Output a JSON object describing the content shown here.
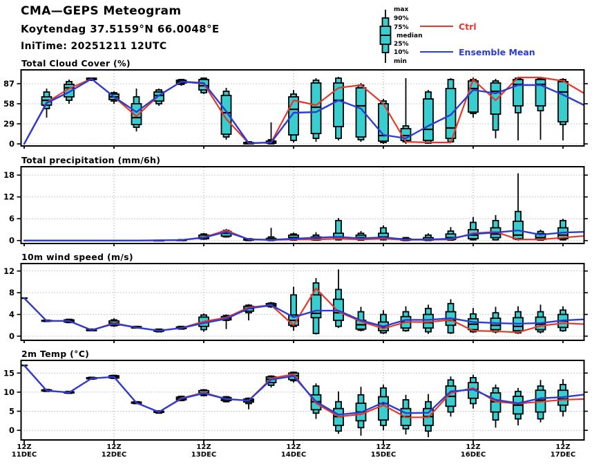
{
  "header": {
    "title": "CMA—GEPS Meteogram",
    "location": "Koytendag 37.5159°N 66.0048°E",
    "initime": "IniTime: 20251211 12UTC"
  },
  "legend": {
    "box_labels": [
      "max",
      "90%",
      "75%",
      "median",
      "25%",
      "10%",
      "min"
    ],
    "ctrl_label": "Ctrl",
    "ensemble_mean_label": "Ensemble Mean"
  },
  "colors": {
    "ctrl": "#e8362a",
    "ensemble_mean": "#2c3bd1",
    "box_fill": "#38cdce",
    "box_stroke": "#000000",
    "grid": "#999999"
  },
  "time_axis": {
    "step_hours": 6,
    "ticks": [
      {
        "time": "12Z",
        "date": "11DEC"
      },
      {
        "time": "12Z",
        "date": "12DEC"
      },
      {
        "time": "12Z",
        "date": "13DEC"
      },
      {
        "time": "12Z",
        "date": "14DEC"
      },
      {
        "time": "12Z",
        "date": "15DEC"
      },
      {
        "time": "12Z",
        "date": "16DEC"
      },
      {
        "time": "12Z",
        "date": "17DEC"
      }
    ]
  },
  "chart_data": [
    {
      "type": "box-line",
      "title": "Total Cloud Cover (%)",
      "yticks": [
        0,
        29,
        58,
        87
      ],
      "ylim": [
        -4,
        108
      ],
      "box_stats_order": [
        "min",
        "p10",
        "p25",
        "median",
        "p75",
        "p90",
        "max"
      ],
      "boxes": [
        null,
        [
          38,
          51,
          56,
          63,
          68,
          75,
          80
        ],
        [
          58,
          63,
          68,
          81,
          86,
          90,
          93
        ],
        [
          91,
          92,
          93,
          94,
          95,
          95,
          96
        ],
        [
          58,
          62,
          64,
          68,
          72,
          74,
          76
        ],
        [
          18,
          24,
          28,
          38,
          58,
          68,
          80
        ],
        [
          55,
          58,
          62,
          70,
          75,
          78,
          80
        ],
        [
          84,
          86,
          88,
          90,
          92,
          93,
          94
        ],
        [
          72,
          74,
          78,
          84,
          93,
          95,
          96
        ],
        [
          6,
          10,
          14,
          45,
          70,
          76,
          81
        ],
        [
          0,
          0,
          0,
          1,
          2,
          3,
          4
        ],
        [
          0,
          0,
          1,
          2,
          4,
          6,
          31
        ],
        [
          2,
          5,
          13,
          50,
          68,
          72,
          78
        ],
        [
          3,
          8,
          15,
          53,
          88,
          92,
          95
        ],
        [
          5,
          8,
          25,
          63,
          88,
          95,
          97
        ],
        [
          3,
          6,
          10,
          55,
          81,
          85,
          88
        ],
        [
          0,
          2,
          4,
          12,
          58,
          62,
          65
        ],
        [
          0,
          3,
          5,
          12,
          22,
          26,
          95
        ],
        [
          0,
          1,
          5,
          21,
          65,
          75,
          78
        ],
        [
          1,
          3,
          8,
          23,
          80,
          93,
          95
        ],
        [
          38,
          44,
          46,
          80,
          91,
          93,
          96
        ],
        [
          8,
          20,
          43,
          76,
          88,
          91,
          94
        ],
        [
          5,
          45,
          55,
          86,
          93,
          95,
          97
        ],
        [
          6,
          48,
          55,
          86,
          93,
          95,
          96
        ],
        [
          5,
          28,
          32,
          75,
          90,
          93,
          95
        ]
      ],
      "series": [
        {
          "name": "Ctrl",
          "values": [
            0,
            60,
            80,
            94,
            68,
            40,
            70,
            90,
            87,
            36,
            1,
            2,
            63,
            56,
            81,
            85,
            58,
            3,
            2,
            2,
            93,
            63,
            96,
            96,
            91,
            72
          ]
        },
        {
          "name": "Ensemble Mean",
          "values": [
            0,
            59,
            75,
            94,
            68,
            46,
            70,
            90,
            88,
            47,
            1,
            2,
            45,
            46,
            63,
            51,
            13,
            8,
            26,
            42,
            78,
            73,
            85,
            85,
            71,
            55
          ]
        }
      ]
    },
    {
      "type": "box-line",
      "title": "Total precipitation (mm/6h)",
      "yticks": [
        0,
        6,
        12,
        18
      ],
      "ylim": [
        -1,
        20.5
      ],
      "box_stats_order": [
        "min",
        "p10",
        "p25",
        "median",
        "p75",
        "p90",
        "max"
      ],
      "boxes": [
        null,
        null,
        null,
        null,
        null,
        null,
        [
          0,
          0,
          0,
          0,
          0.05,
          0.1,
          0.15
        ],
        [
          0,
          0,
          0,
          0.05,
          0.15,
          0.25,
          0.4
        ],
        [
          0.2,
          0.4,
          0.5,
          0.9,
          1.5,
          1.8,
          2.1
        ],
        [
          0.8,
          1.0,
          1.2,
          2.0,
          2.5,
          2.8,
          3.2
        ],
        [
          0,
          0,
          0.1,
          0.2,
          0.4,
          0.5,
          0.6
        ],
        [
          0,
          0,
          0.1,
          0.3,
          0.6,
          1.0,
          3.5
        ],
        [
          0,
          0.1,
          0.3,
          0.8,
          1.5,
          1.8,
          2.2
        ],
        [
          0,
          0.1,
          0.2,
          0.5,
          1.0,
          1.5,
          2.3
        ],
        [
          0,
          0.2,
          0.5,
          1.0,
          2.0,
          5.5,
          6.2
        ],
        [
          0,
          0.1,
          0.3,
          0.8,
          1.5,
          2.0,
          2.6
        ],
        [
          0,
          0.2,
          0.5,
          1.0,
          2.0,
          3.5,
          4.2
        ],
        [
          0,
          0,
          0.1,
          0.2,
          0.5,
          0.8,
          1.0
        ],
        [
          0,
          0,
          0.1,
          0.3,
          0.8,
          1.5,
          2.0
        ],
        [
          0,
          0.1,
          0.3,
          0.8,
          1.8,
          2.6,
          3.7
        ],
        [
          0,
          0.2,
          0.5,
          1.5,
          3.0,
          5.0,
          6.5
        ],
        [
          0,
          0.2,
          0.8,
          1.8,
          3.5,
          5.5,
          7.0
        ],
        [
          0,
          0.3,
          0.5,
          1.5,
          5.3,
          8.0,
          18.5
        ],
        [
          0,
          0.1,
          0.3,
          0.8,
          1.9,
          2.5,
          3.0
        ],
        [
          0,
          0.2,
          0.5,
          1.5,
          3.5,
          5.5,
          6.0
        ]
      ],
      "series": [
        {
          "name": "Ctrl",
          "values": [
            0,
            0,
            0,
            0,
            0,
            0,
            0.05,
            0.1,
            0.9,
            2.8,
            0.3,
            0.15,
            0.3,
            0.3,
            0.5,
            0.3,
            0.5,
            0.2,
            0.2,
            0.3,
            2.0,
            2.4,
            0.3,
            0.3,
            0.8,
            1.3
          ]
        },
        {
          "name": "Ensemble Mean",
          "values": [
            0,
            0,
            0,
            0,
            0,
            0,
            0.05,
            0.15,
            0.8,
            2.4,
            0.35,
            0.2,
            0.5,
            0.8,
            1.0,
            0.6,
            0.9,
            0.3,
            0.3,
            0.5,
            1.8,
            2.2,
            2.8,
            1.6,
            2.2,
            2.4
          ]
        }
      ]
    },
    {
      "type": "box-line",
      "title": "10m wind speed (m/s)",
      "yticks": [
        0,
        4,
        8,
        12
      ],
      "ylim": [
        -0.9,
        13.5
      ],
      "box_stats_order": [
        "min",
        "p10",
        "p25",
        "median",
        "p75",
        "p90",
        "max"
      ],
      "boxes": [
        [
          7,
          7,
          7,
          7,
          7,
          7,
          7
        ],
        [
          2.6,
          2.7,
          2.75,
          2.8,
          2.9,
          2.95,
          3.0
        ],
        [
          2.4,
          2.5,
          2.6,
          2.8,
          3.0,
          3.1,
          3.2
        ],
        [
          0.9,
          1.0,
          1.0,
          1.1,
          1.2,
          1.3,
          1.4
        ],
        [
          1.7,
          1.9,
          2.0,
          2.4,
          2.8,
          3.0,
          3.3
        ],
        [
          1.4,
          1.5,
          1.5,
          1.6,
          1.75,
          1.8,
          1.9
        ],
        [
          0.7,
          0.8,
          0.9,
          1.0,
          1.2,
          1.3,
          1.4
        ],
        [
          1.2,
          1.3,
          1.4,
          1.5,
          1.7,
          1.8,
          1.9
        ],
        [
          0.8,
          1.2,
          1.8,
          2.5,
          3.5,
          3.9,
          4.2
        ],
        [
          1.3,
          2.9,
          3.0,
          3.3,
          3.6,
          3.8,
          4.0
        ],
        [
          2.9,
          4.3,
          4.6,
          5.1,
          5.5,
          5.7,
          5.9
        ],
        [
          5.2,
          5.4,
          5.5,
          5.7,
          6.0,
          6.1,
          6.3
        ],
        [
          1.0,
          1.8,
          2.0,
          2.9,
          3.9,
          7.6,
          9.1
        ],
        [
          0.3,
          0.5,
          3.4,
          4.2,
          7.6,
          9.8,
          10.7
        ],
        [
          1.5,
          1.8,
          2.9,
          4.3,
          6.8,
          8.6,
          12.3
        ],
        [
          0.9,
          1.1,
          1.3,
          2.1,
          2.9,
          4.5,
          5.4
        ],
        [
          0.4,
          0.6,
          1.0,
          1.6,
          2.6,
          4.0,
          4.8
        ],
        [
          0.8,
          1.0,
          1.5,
          2.6,
          3.6,
          4.5,
          5.5
        ],
        [
          0.4,
          0.8,
          1.5,
          2.5,
          4.0,
          5.1,
          5.8
        ],
        [
          0.4,
          0.6,
          2.0,
          2.9,
          4.5,
          6.0,
          6.8
        ],
        [
          0.6,
          0.8,
          1.2,
          2.2,
          3.2,
          4.1,
          5.2
        ],
        [
          0.5,
          0.8,
          1.2,
          2.0,
          3.3,
          4.3,
          5.4
        ],
        [
          0.4,
          0.6,
          1.0,
          1.8,
          3.4,
          4.5,
          5.5
        ],
        [
          0.5,
          0.8,
          1.2,
          2.2,
          3.5,
          4.5,
          5.8
        ],
        [
          0.8,
          1.0,
          1.6,
          2.8,
          4.0,
          4.8,
          5.5
        ]
      ],
      "series": [
        {
          "name": "Ctrl",
          "values": [
            7.0,
            2.8,
            2.8,
            1.1,
            2.4,
            1.6,
            1.0,
            1.5,
            2.7,
            3.4,
            5.3,
            5.7,
            2.0,
            8.8,
            4.5,
            2.7,
            1.4,
            2.6,
            2.6,
            3.0,
            1.0,
            0.9,
            0.7,
            1.9,
            2.4,
            2.2
          ]
        },
        {
          "name": "Ensemble Mean",
          "values": [
            7.0,
            2.8,
            2.8,
            1.1,
            2.3,
            1.6,
            1.0,
            1.5,
            2.4,
            3.2,
            5.1,
            5.7,
            3.5,
            4.7,
            4.7,
            2.9,
            1.8,
            3.0,
            3.0,
            3.3,
            2.6,
            2.4,
            2.3,
            2.4,
            2.9,
            3.1
          ]
        }
      ]
    },
    {
      "type": "box-line",
      "title": "2m Temp (°C)",
      "yticks": [
        0,
        5,
        10,
        15
      ],
      "ylim": [
        -2.7,
        18.5
      ],
      "box_stats_order": [
        "min",
        "p10",
        "p25",
        "median",
        "p75",
        "p90",
        "max"
      ],
      "boxes": [
        [
          17,
          17,
          17,
          17,
          17,
          17,
          17
        ],
        [
          10.1,
          10.2,
          10.3,
          10.4,
          10.6,
          10.7,
          10.8
        ],
        [
          9.6,
          9.7,
          9.8,
          9.9,
          10.1,
          10.2,
          10.3
        ],
        [
          13.3,
          13.4,
          13.5,
          13.6,
          13.8,
          13.9,
          14.0
        ],
        [
          13.4,
          13.6,
          13.7,
          14.0,
          14.3,
          14.4,
          14.6
        ],
        [
          6.9,
          7.0,
          7.1,
          7.2,
          7.4,
          7.5,
          7.6
        ],
        [
          4.4,
          4.5,
          4.7,
          4.8,
          5.0,
          5.1,
          5.2
        ],
        [
          7.6,
          7.8,
          8.0,
          8.3,
          8.7,
          8.9,
          9.1
        ],
        [
          8.9,
          9.1,
          9.4,
          9.8,
          10.4,
          10.6,
          10.8
        ],
        [
          7.3,
          7.5,
          7.8,
          8.2,
          8.6,
          8.8,
          9.0
        ],
        [
          5.5,
          7.0,
          7.4,
          7.8,
          8.2,
          8.4,
          8.6
        ],
        [
          11.2,
          11.8,
          12.5,
          13.4,
          14.0,
          14.2,
          14.4
        ],
        [
          12.5,
          13.0,
          13.3,
          14.3,
          15.0,
          15.2,
          15.4
        ],
        [
          3.0,
          4.5,
          5.4,
          7.5,
          9.3,
          11.6,
          12.3
        ],
        [
          -0.9,
          -0.2,
          1.3,
          3.6,
          5.7,
          7.5,
          10.2
        ],
        [
          -1.4,
          0.7,
          2.5,
          4.8,
          7.1,
          9.3,
          11.4
        ],
        [
          0,
          1.3,
          2.7,
          7.0,
          8.8,
          11.1,
          12.0
        ],
        [
          -1.1,
          0.4,
          1.3,
          3.6,
          5.7,
          8.0,
          9.3
        ],
        [
          -1.8,
          -0.2,
          1.3,
          3.6,
          5.7,
          7.5,
          9.5
        ],
        [
          3.6,
          4.8,
          6.3,
          8.9,
          11.6,
          13.2,
          14.1
        ],
        [
          5.7,
          7.0,
          8.4,
          10.7,
          12.5,
          13.8,
          14.6
        ],
        [
          0.7,
          2.7,
          4.8,
          7.5,
          9.8,
          11.1,
          12.0
        ],
        [
          1.3,
          3.0,
          4.3,
          6.6,
          8.9,
          10.2,
          11.1
        ],
        [
          2.1,
          3.0,
          4.8,
          7.9,
          10.5,
          11.6,
          13.2
        ],
        [
          3.6,
          5.0,
          6.6,
          8.2,
          10.5,
          12.0,
          13.4
        ]
      ],
      "series": [
        {
          "name": "Ctrl",
          "values": [
            17,
            10.4,
            9.9,
            13.6,
            14.0,
            7.2,
            4.8,
            8.4,
            9.9,
            8.2,
            7.8,
            13.6,
            14.7,
            7.1,
            3.6,
            4.2,
            6.6,
            3.4,
            3.4,
            9.8,
            11.1,
            7.5,
            7.0,
            7.5,
            8.0,
            8.2
          ]
        },
        {
          "name": "Ensemble Mean",
          "values": [
            17,
            10.4,
            9.9,
            13.6,
            14.0,
            7.2,
            4.8,
            8.3,
            9.7,
            8.2,
            7.8,
            13.3,
            14.2,
            7.5,
            4.1,
            4.7,
            7.3,
            4.5,
            4.6,
            10.2,
            10.7,
            8.0,
            7.1,
            8.4,
            8.7,
            9.4
          ]
        }
      ]
    }
  ]
}
